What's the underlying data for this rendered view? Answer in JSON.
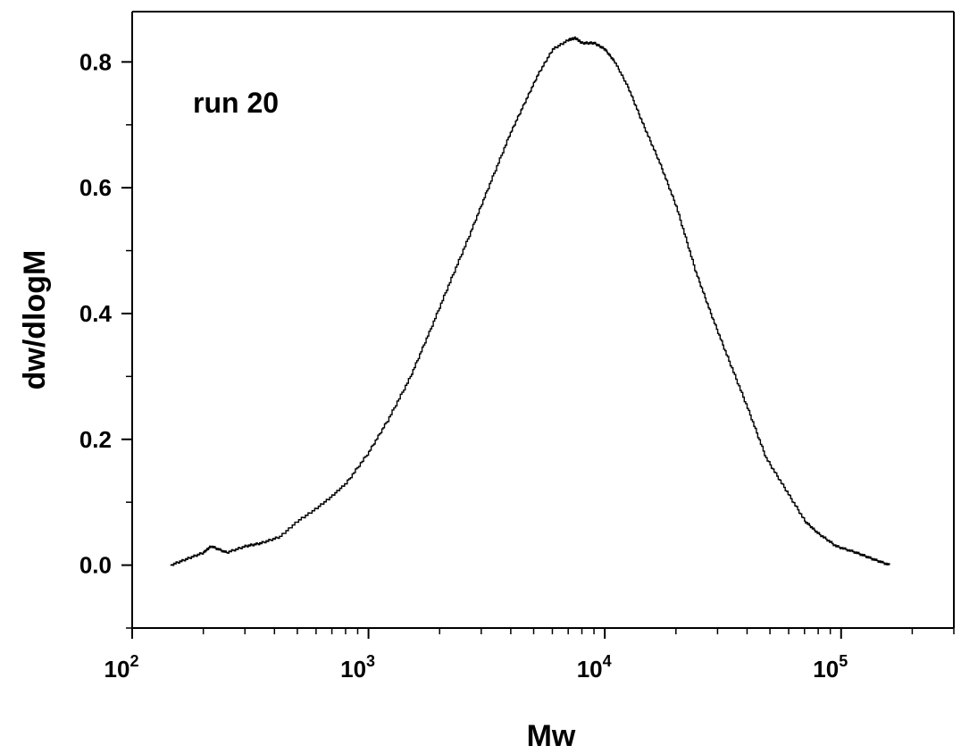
{
  "chart_data": {
    "type": "line",
    "title": "",
    "xlabel": "Mw",
    "ylabel": "dw/dlogM",
    "x_scale": "log",
    "xlim": [
      100,
      300000
    ],
    "ylim": [
      -0.1,
      0.88
    ],
    "x_ticks": [
      {
        "value": 100,
        "base": "10",
        "exp": "2"
      },
      {
        "value": 1000,
        "base": "10",
        "exp": "3"
      },
      {
        "value": 10000,
        "base": "10",
        "exp": "4"
      },
      {
        "value": 100000,
        "base": "10",
        "exp": "5"
      }
    ],
    "y_ticks": [
      {
        "value": 0.0,
        "label": "0.0"
      },
      {
        "value": 0.2,
        "label": "0.2"
      },
      {
        "value": 0.4,
        "label": "0.4"
      },
      {
        "value": 0.6,
        "label": "0.6"
      },
      {
        "value": 0.8,
        "label": "0.8"
      }
    ],
    "grid": false,
    "annotation": "run 20",
    "series": [
      {
        "color": "#000000",
        "x": [
          145,
          170,
          200,
          215,
          250,
          300,
          350,
          420,
          500,
          600,
          700,
          800,
          1000,
          1200,
          1500,
          1800,
          2200,
          2700,
          3200,
          3900,
          4500,
          5200,
          6000,
          7000,
          7500,
          8000,
          9000,
          10000,
          11000,
          12500,
          14500,
          17000,
          20000,
          24000,
          28000,
          33000,
          40000,
          48000,
          58000,
          70000,
          80000,
          95000,
          115000,
          135000,
          160000
        ],
        "y": [
          0.0,
          0.01,
          0.02,
          0.03,
          0.02,
          0.03,
          0.035,
          0.045,
          0.07,
          0.09,
          0.11,
          0.13,
          0.18,
          0.23,
          0.3,
          0.37,
          0.45,
          0.53,
          0.6,
          0.68,
          0.73,
          0.78,
          0.82,
          0.835,
          0.838,
          0.83,
          0.83,
          0.82,
          0.8,
          0.76,
          0.7,
          0.64,
          0.57,
          0.47,
          0.4,
          0.33,
          0.25,
          0.17,
          0.12,
          0.07,
          0.05,
          0.03,
          0.02,
          0.01,
          0.0
        ]
      }
    ]
  }
}
